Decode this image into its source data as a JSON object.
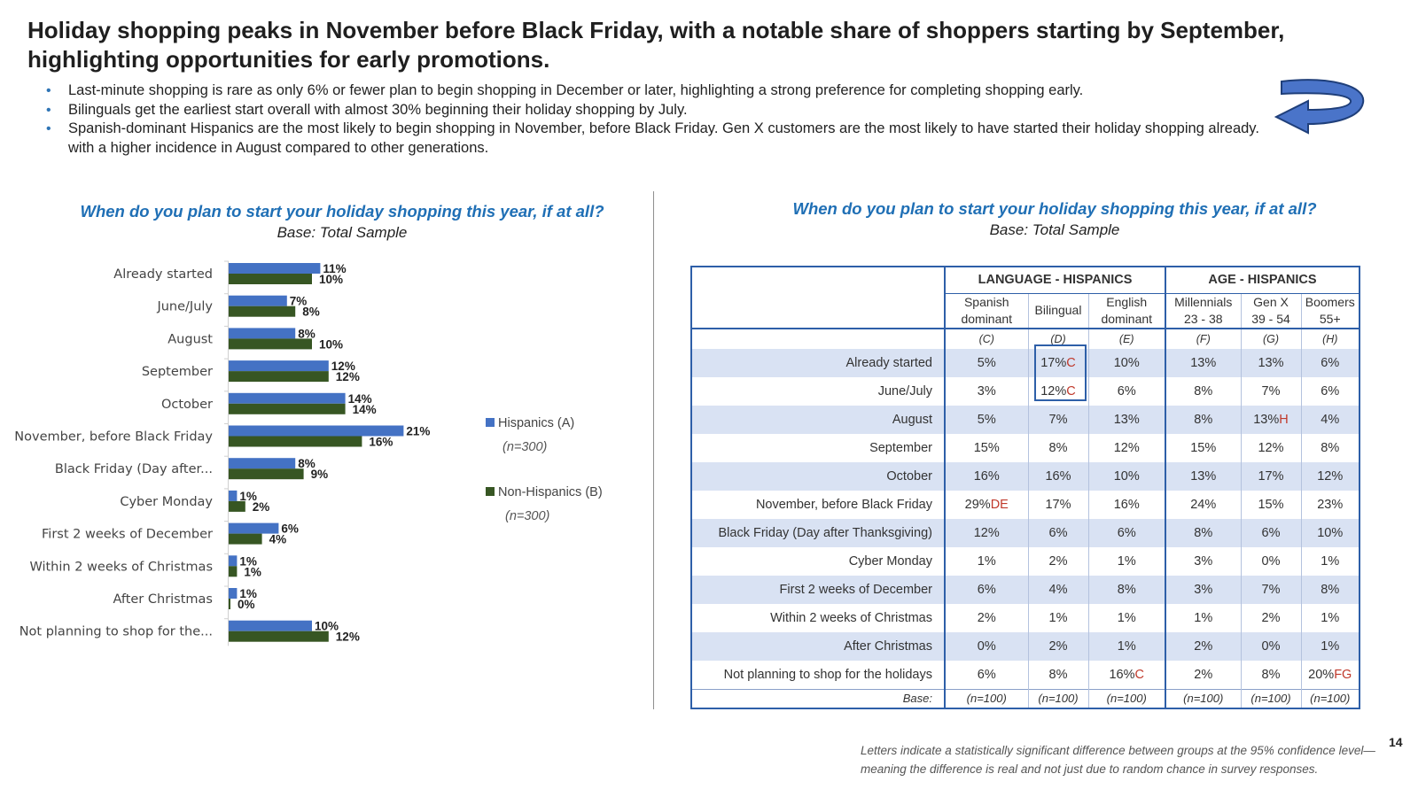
{
  "slide": {
    "headline_1": "Holiday shopping peaks in November before Black Friday, with a notable share of shoppers starting by September,",
    "headline_2": "highlighting opportunities for early promotions.",
    "bullets": [
      "Last-minute shopping is rare as only 6% or fewer plan to begin shopping in December or later, highlighting a strong preference for completing shopping early.",
      "Bilinguals get the earliest start overall with almost 30% beginning their holiday shopping by July.",
      "Spanish-dominant Hispanics are the most likely to begin shopping in November, before Black Friday. Gen X customers are the most likely to have started their holiday shopping already. with a higher incidence in August compared to other generations."
    ],
    "bullet_glyph": "•",
    "page_number": "14",
    "footnote": "Letters indicate a statistically significant difference between groups at the 95% confidence level—meaning the difference is real and not just due to random chance in survey responses.",
    "icons": {
      "arrow": "curved-return-arrow-icon"
    },
    "colors": {
      "accent": "#1f6fb5",
      "hispanics": "#4472c4",
      "non_hispanics": "#375623",
      "table_stripe": "#d9e2f3",
      "table_border": "#2e5fa8",
      "significance": "#c0392b"
    }
  },
  "left_panel": {
    "title": "When do you plan to start your holiday shopping this year, if at all?",
    "base": "Base: Total Sample",
    "legend": [
      {
        "label": "Hispanics (A)",
        "n": "(n=300)",
        "color": "#4472c4"
      },
      {
        "label": "Non-Hispanics (B)",
        "n": "(n=300)",
        "color": "#375623"
      }
    ]
  },
  "chart_data": {
    "type": "bar",
    "orientation": "horizontal",
    "title": "When do you plan to start your holiday shopping this year, if at all?",
    "subtitle": "Base: Total Sample",
    "categories": [
      "Already started",
      "June/July",
      "August",
      "September",
      "October",
      "November, before Black Friday",
      "Black Friday (Day after...",
      "Cyber Monday",
      "First 2 weeks of December",
      "Within 2 weeks of Christmas",
      "After Christmas",
      "Not planning to shop for the..."
    ],
    "series": [
      {
        "name": "Hispanics (A)",
        "values": [
          11,
          7,
          8,
          12,
          14,
          21,
          8,
          1,
          6,
          1,
          1,
          10
        ],
        "labels": [
          "11%",
          "7%",
          "8%",
          "12%",
          "14%",
          "21%",
          "8%",
          "1%",
          "6%",
          "1%",
          "1%",
          "10%"
        ],
        "color": "#4472c4"
      },
      {
        "name": "Non-Hispanics (B)",
        "values": [
          10,
          8,
          10,
          12,
          14,
          16,
          9,
          2,
          4,
          1,
          0,
          12
        ],
        "labels": [
          "10%",
          "8%",
          "10%",
          "12%",
          "14%",
          "16%",
          "9%",
          "2%",
          "4%",
          "1%",
          "0%",
          "12%"
        ],
        "color": "#375623"
      }
    ],
    "unit": "%",
    "xlim": [
      0,
      24
    ],
    "grid": false,
    "legend_position": "right"
  },
  "right_panel": {
    "title": "When do you plan to start your holiday shopping this year, if at all?",
    "base": "Base: Total Sample",
    "groups": [
      "LANGUAGE - HISPANICS",
      "AGE - HISPANICS"
    ],
    "columns": [
      {
        "line1": "Spanish",
        "line2": "dominant",
        "code": "(C)"
      },
      {
        "line1": "Bilingual",
        "line2": "",
        "code": "(D)"
      },
      {
        "line1": "English",
        "line2": "dominant",
        "code": "(E)"
      },
      {
        "line1": "Millennials",
        "line2": "23 - 38",
        "code": "(F)"
      },
      {
        "line1": "Gen X",
        "line2": "39 - 54",
        "code": "(G)"
      },
      {
        "line1": "Boomers",
        "line2": "55+",
        "code": "(H)"
      }
    ],
    "rows": [
      {
        "label": "Already started",
        "cells": [
          [
            "5%",
            ""
          ],
          [
            "17%",
            "C"
          ],
          [
            "10%",
            ""
          ],
          [
            "13%",
            ""
          ],
          [
            "13%",
            ""
          ],
          [
            "6%",
            ""
          ]
        ]
      },
      {
        "label": "June/July",
        "cells": [
          [
            "3%",
            ""
          ],
          [
            "12%",
            "C"
          ],
          [
            "6%",
            ""
          ],
          [
            "8%",
            ""
          ],
          [
            "7%",
            ""
          ],
          [
            "6%",
            ""
          ]
        ]
      },
      {
        "label": "August",
        "cells": [
          [
            "5%",
            ""
          ],
          [
            "7%",
            ""
          ],
          [
            "13%",
            ""
          ],
          [
            "8%",
            ""
          ],
          [
            "13%",
            "H"
          ],
          [
            "4%",
            ""
          ]
        ]
      },
      {
        "label": "September",
        "cells": [
          [
            "15%",
            ""
          ],
          [
            "8%",
            ""
          ],
          [
            "12%",
            ""
          ],
          [
            "15%",
            ""
          ],
          [
            "12%",
            ""
          ],
          [
            "8%",
            ""
          ]
        ]
      },
      {
        "label": "October",
        "cells": [
          [
            "16%",
            ""
          ],
          [
            "16%",
            ""
          ],
          [
            "10%",
            ""
          ],
          [
            "13%",
            ""
          ],
          [
            "17%",
            ""
          ],
          [
            "12%",
            ""
          ]
        ]
      },
      {
        "label": "November, before Black Friday",
        "cells": [
          [
            "29%",
            "DE"
          ],
          [
            "17%",
            ""
          ],
          [
            "16%",
            ""
          ],
          [
            "24%",
            ""
          ],
          [
            "15%",
            ""
          ],
          [
            "23%",
            ""
          ]
        ]
      },
      {
        "label": "Black Friday (Day after Thanksgiving)",
        "cells": [
          [
            "12%",
            ""
          ],
          [
            "6%",
            ""
          ],
          [
            "6%",
            ""
          ],
          [
            "8%",
            ""
          ],
          [
            "6%",
            ""
          ],
          [
            "10%",
            ""
          ]
        ]
      },
      {
        "label": "Cyber Monday",
        "cells": [
          [
            "1%",
            ""
          ],
          [
            "2%",
            ""
          ],
          [
            "1%",
            ""
          ],
          [
            "3%",
            ""
          ],
          [
            "0%",
            ""
          ],
          [
            "1%",
            ""
          ]
        ]
      },
      {
        "label": "First 2 weeks of December",
        "cells": [
          [
            "6%",
            ""
          ],
          [
            "4%",
            ""
          ],
          [
            "8%",
            ""
          ],
          [
            "3%",
            ""
          ],
          [
            "7%",
            ""
          ],
          [
            "8%",
            ""
          ]
        ]
      },
      {
        "label": "Within 2 weeks of Christmas",
        "cells": [
          [
            "2%",
            ""
          ],
          [
            "1%",
            ""
          ],
          [
            "1%",
            ""
          ],
          [
            "1%",
            ""
          ],
          [
            "2%",
            ""
          ],
          [
            "1%",
            ""
          ]
        ]
      },
      {
        "label": "After Christmas",
        "cells": [
          [
            "0%",
            ""
          ],
          [
            "2%",
            ""
          ],
          [
            "1%",
            ""
          ],
          [
            "2%",
            ""
          ],
          [
            "0%",
            ""
          ],
          [
            "1%",
            ""
          ]
        ]
      },
      {
        "label": "Not planning to shop for the holidays",
        "cells": [
          [
            "6%",
            ""
          ],
          [
            "8%",
            ""
          ],
          [
            "16%",
            "C"
          ],
          [
            "2%",
            ""
          ],
          [
            "8%",
            ""
          ],
          [
            "20%",
            "FG"
          ]
        ]
      }
    ],
    "base_row": {
      "label": "Base:",
      "values": [
        "(n=100)",
        "(n=100)",
        "(n=100)",
        "(n=100)",
        "(n=100)",
        "(n=100)"
      ]
    }
  }
}
